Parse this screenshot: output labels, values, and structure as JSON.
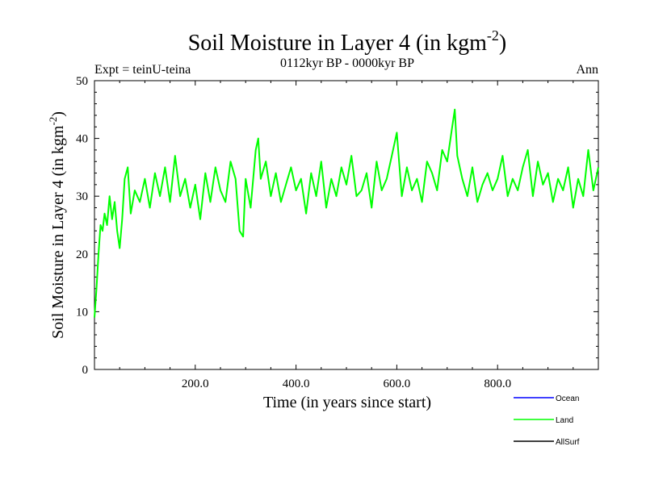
{
  "chart_data": {
    "type": "line",
    "title": "Soil Moisture in Layer 4 (in kgm",
    "title_sup": "-2",
    "title_suffix": ")",
    "subtitle": "0112kyr BP - 0000kyr BP",
    "expt_label": "Expt = teinU-teina",
    "period_label": "Ann",
    "xlabel": "Time (in years since start)",
    "ylabel": "Soil Moisture in Layer 4 (in kgm",
    "ylabel_sup": "-2",
    "ylabel_suffix": ")",
    "xlim": [
      0,
      1000
    ],
    "ylim": [
      0,
      50
    ],
    "x_ticks": [
      200,
      400,
      600,
      800
    ],
    "x_tick_labels": [
      "200.0",
      "400.0",
      "600.0",
      "800.0"
    ],
    "y_ticks": [
      0,
      10,
      20,
      30,
      40,
      50
    ],
    "y_tick_labels": [
      "0",
      "10",
      "20",
      "30",
      "40",
      "50"
    ],
    "legend_position": "bottom-right",
    "series": [
      {
        "name": "Ocean",
        "color": "#0000ff",
        "values": []
      },
      {
        "name": "Land",
        "color": "#00ff00",
        "x": [
          0,
          4,
          8,
          12,
          16,
          20,
          25,
          30,
          35,
          40,
          45,
          50,
          55,
          60,
          66,
          72,
          80,
          90,
          100,
          110,
          120,
          130,
          140,
          150,
          160,
          170,
          180,
          190,
          200,
          210,
          220,
          230,
          240,
          250,
          260,
          270,
          280,
          288,
          295,
          300,
          310,
          320,
          325,
          330,
          340,
          350,
          360,
          370,
          380,
          390,
          400,
          410,
          420,
          430,
          440,
          450,
          460,
          470,
          480,
          490,
          500,
          510,
          520,
          530,
          540,
          550,
          560,
          570,
          580,
          590,
          600,
          610,
          620,
          630,
          640,
          650,
          660,
          670,
          680,
          690,
          700,
          710,
          715,
          720,
          730,
          740,
          750,
          760,
          770,
          780,
          790,
          800,
          810,
          820,
          830,
          840,
          850,
          860,
          870,
          880,
          890,
          900,
          910,
          920,
          930,
          940,
          950,
          960,
          970,
          980,
          990,
          1000
        ],
        "values": [
          9,
          14,
          20,
          25,
          24,
          27,
          25,
          30,
          26,
          29,
          24,
          21,
          26,
          33,
          35,
          27,
          31,
          29,
          33,
          28,
          34,
          30,
          35,
          29,
          37,
          30,
          33,
          28,
          32,
          26,
          34,
          29,
          35,
          31,
          29,
          36,
          33,
          24,
          23,
          33,
          28,
          38,
          40,
          33,
          36,
          30,
          34,
          29,
          32,
          35,
          31,
          33,
          27,
          34,
          30,
          36,
          28,
          33,
          30,
          35,
          32,
          37,
          30,
          31,
          34,
          28,
          36,
          31,
          33,
          37,
          41,
          30,
          35,
          31,
          33,
          29,
          36,
          34,
          31,
          38,
          36,
          42,
          45,
          37,
          33,
          30,
          35,
          29,
          32,
          34,
          31,
          33,
          37,
          30,
          33,
          31,
          35,
          38,
          30,
          36,
          32,
          34,
          29,
          33,
          31,
          35,
          28,
          33,
          30,
          38,
          31,
          35
        ]
      },
      {
        "name": "AllSurf",
        "color": "#000000",
        "values": []
      }
    ]
  }
}
